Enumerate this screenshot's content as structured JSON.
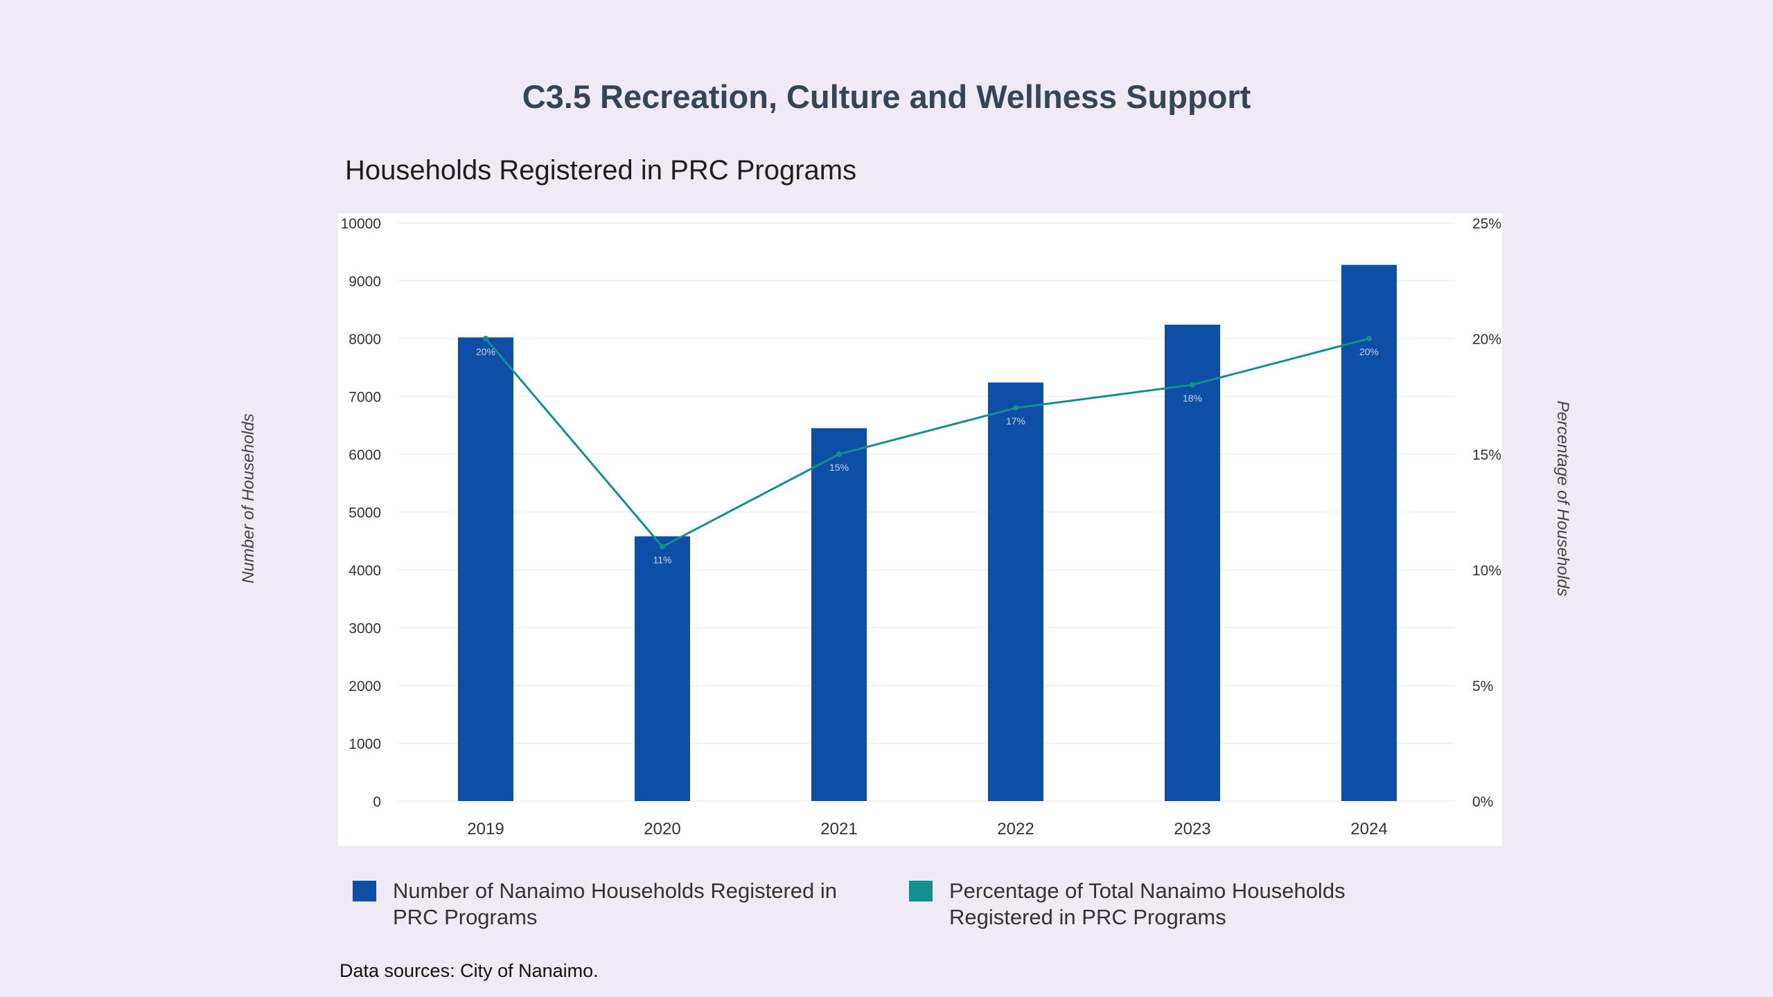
{
  "page": {
    "title": "C3.5 Recreation, Culture and Wellness Support",
    "source": "Data sources: City of Nanaimo."
  },
  "chart_data": {
    "type": "bar+line",
    "title": "Households Registered in PRC Programs",
    "categories": [
      "2019",
      "2020",
      "2021",
      "2022",
      "2023",
      "2024"
    ],
    "series": [
      {
        "name": "Number of Nanaimo Households Registered in PRC Programs",
        "type": "bar",
        "axis": "left",
        "color": "#0d4ea6",
        "values": [
          8020,
          4580,
          6450,
          7240,
          8240,
          9275
        ]
      },
      {
        "name": "Percentage of Total Nanaimo Households Registered in PRC Programs",
        "type": "line",
        "axis": "right",
        "color": "#12908e",
        "values": [
          20,
          11,
          15,
          17,
          18,
          20
        ],
        "labels": [
          "20%",
          "11%",
          "15%",
          "17%",
          "18%",
          "20%"
        ]
      }
    ],
    "ylabel": "Number of Households",
    "y2label": "Percentage of Households",
    "ylim": [
      0,
      10000
    ],
    "y2lim": [
      0,
      25
    ],
    "yticks": [
      "0",
      "1000",
      "2000",
      "3000",
      "4000",
      "5000",
      "6000",
      "7000",
      "8000",
      "9000",
      "10000"
    ],
    "y2ticks": [
      "0%",
      "5%",
      "10%",
      "15%",
      "20%",
      "25%"
    ],
    "grid": true,
    "legend": "bottom"
  }
}
